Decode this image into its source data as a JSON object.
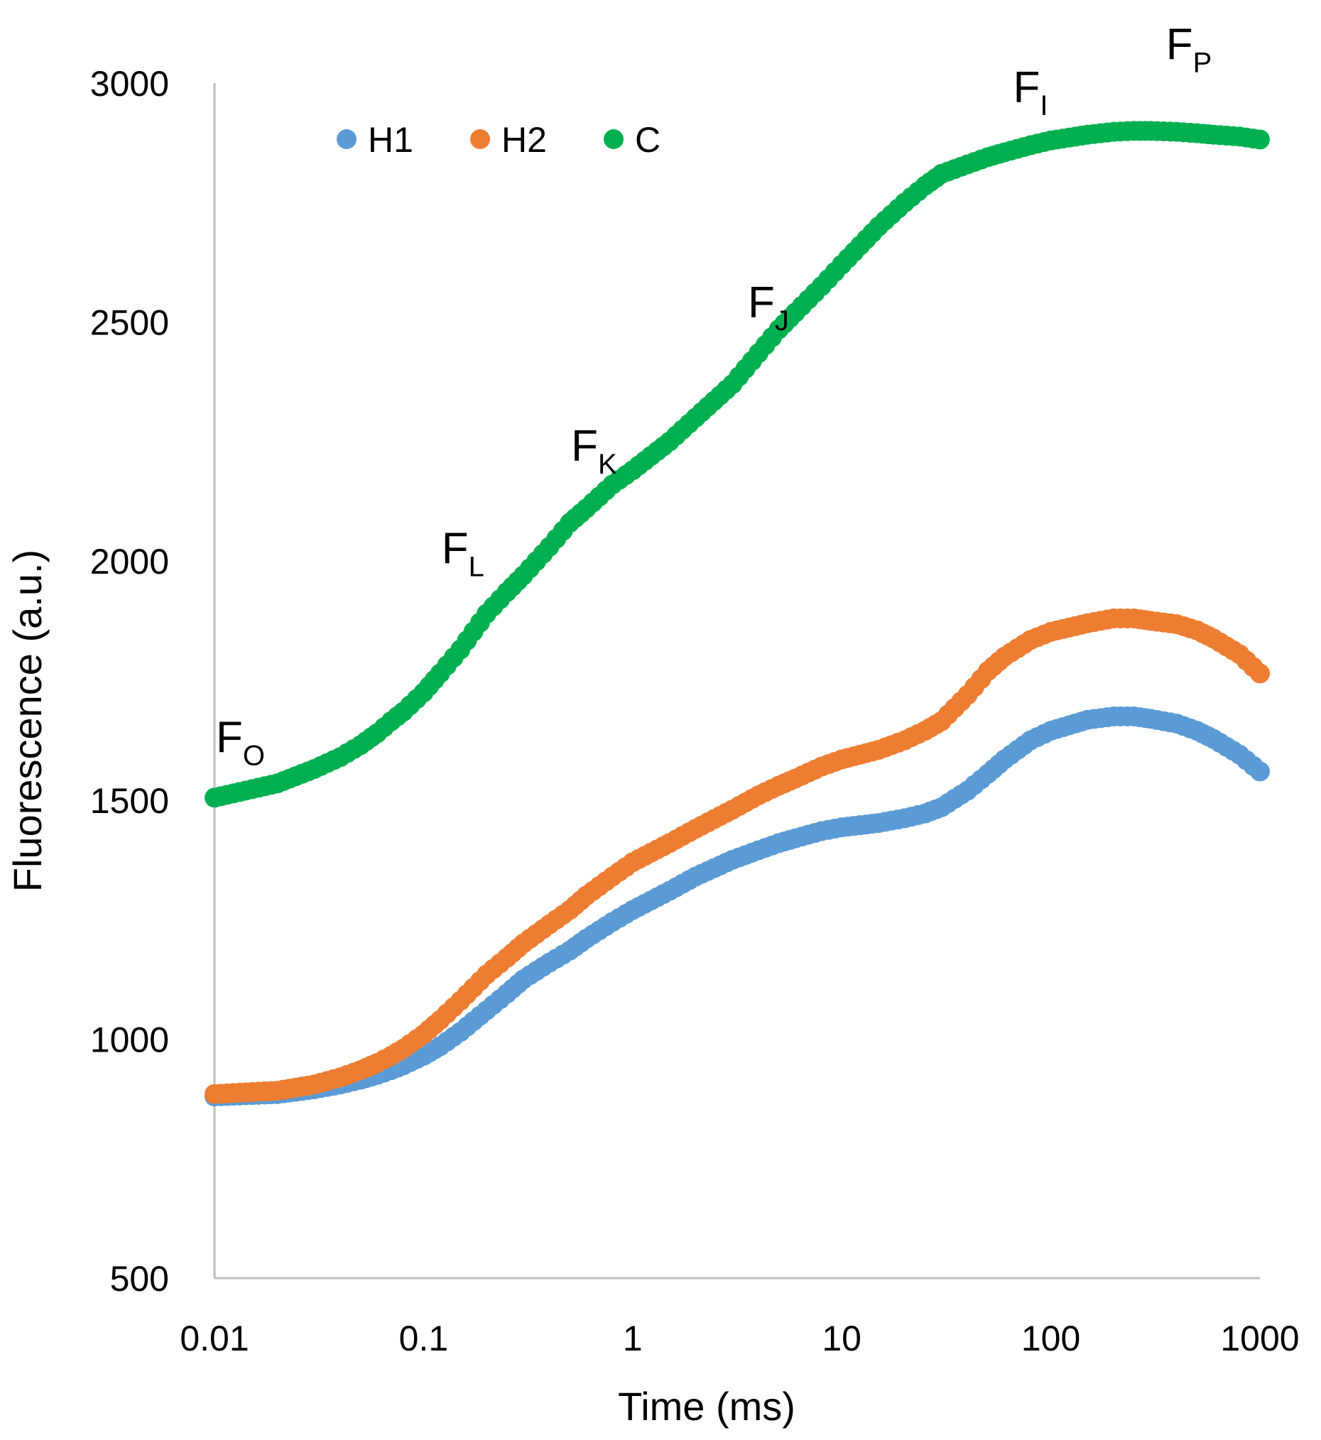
{
  "chart_data": {
    "type": "scatter",
    "title": "",
    "xlabel": "Time (ms)",
    "ylabel": "Fluorescence (a.u.)",
    "xscale": "log",
    "xlim": [
      0.01,
      1000
    ],
    "ylim": [
      500,
      3000
    ],
    "xticks": [
      0.01,
      0.1,
      1,
      10,
      100,
      1000
    ],
    "xtick_labels": [
      "0.01",
      "0.1",
      "1",
      "10",
      "100",
      "1000"
    ],
    "yticks": [
      500,
      1000,
      1500,
      2000,
      2500,
      3000
    ],
    "ytick_labels": [
      "500",
      "1000",
      "1500",
      "2000",
      "2500",
      "3000"
    ],
    "grid": false,
    "legend": {
      "position": "top-left",
      "orientation": "horizontal"
    },
    "series": [
      {
        "name": "H1",
        "color": "#5B9BD5",
        "points": [
          [
            0.01,
            880
          ],
          [
            0.02,
            885
          ],
          [
            0.03,
            895
          ],
          [
            0.04,
            905
          ],
          [
            0.05,
            915
          ],
          [
            0.06,
            925
          ],
          [
            0.07,
            935
          ],
          [
            0.08,
            945
          ],
          [
            0.1,
            965
          ],
          [
            0.12,
            985
          ],
          [
            0.15,
            1015
          ],
          [
            0.2,
            1060
          ],
          [
            0.25,
            1095
          ],
          [
            0.3,
            1125
          ],
          [
            0.4,
            1160
          ],
          [
            0.5,
            1185
          ],
          [
            0.6,
            1210
          ],
          [
            0.8,
            1245
          ],
          [
            1,
            1270
          ],
          [
            1.5,
            1310
          ],
          [
            2,
            1340
          ],
          [
            3,
            1375
          ],
          [
            4,
            1395
          ],
          [
            5,
            1410
          ],
          [
            6,
            1420
          ],
          [
            8,
            1435
          ],
          [
            10,
            1443
          ],
          [
            15,
            1452
          ],
          [
            20,
            1462
          ],
          [
            25,
            1472
          ],
          [
            30,
            1485
          ],
          [
            40,
            1520
          ],
          [
            50,
            1555
          ],
          [
            60,
            1585
          ],
          [
            80,
            1625
          ],
          [
            100,
            1645
          ],
          [
            150,
            1668
          ],
          [
            200,
            1675
          ],
          [
            250,
            1675
          ],
          [
            300,
            1670
          ],
          [
            400,
            1660
          ],
          [
            500,
            1645
          ],
          [
            600,
            1628
          ],
          [
            800,
            1595
          ],
          [
            1000,
            1560
          ]
        ]
      },
      {
        "name": "H2",
        "color": "#ED7D31",
        "points": [
          [
            0.01,
            885
          ],
          [
            0.02,
            892
          ],
          [
            0.03,
            905
          ],
          [
            0.04,
            920
          ],
          [
            0.05,
            935
          ],
          [
            0.06,
            950
          ],
          [
            0.07,
            965
          ],
          [
            0.08,
            980
          ],
          [
            0.1,
            1010
          ],
          [
            0.12,
            1040
          ],
          [
            0.15,
            1080
          ],
          [
            0.2,
            1135
          ],
          [
            0.25,
            1170
          ],
          [
            0.3,
            1200
          ],
          [
            0.4,
            1240
          ],
          [
            0.5,
            1270
          ],
          [
            0.6,
            1300
          ],
          [
            0.8,
            1340
          ],
          [
            1,
            1370
          ],
          [
            1.5,
            1410
          ],
          [
            2,
            1440
          ],
          [
            3,
            1480
          ],
          [
            4,
            1510
          ],
          [
            5,
            1530
          ],
          [
            6,
            1545
          ],
          [
            8,
            1570
          ],
          [
            10,
            1585
          ],
          [
            15,
            1605
          ],
          [
            20,
            1625
          ],
          [
            25,
            1645
          ],
          [
            30,
            1665
          ],
          [
            40,
            1720
          ],
          [
            50,
            1770
          ],
          [
            60,
            1800
          ],
          [
            80,
            1835
          ],
          [
            100,
            1852
          ],
          [
            150,
            1870
          ],
          [
            200,
            1880
          ],
          [
            250,
            1880
          ],
          [
            300,
            1875
          ],
          [
            400,
            1868
          ],
          [
            500,
            1855
          ],
          [
            600,
            1838
          ],
          [
            800,
            1805
          ],
          [
            1000,
            1765
          ]
        ]
      },
      {
        "name": "C",
        "color": "#00B050",
        "points": [
          [
            0.01,
            1505
          ],
          [
            0.02,
            1535
          ],
          [
            0.03,
            1565
          ],
          [
            0.04,
            1590
          ],
          [
            0.05,
            1615
          ],
          [
            0.06,
            1640
          ],
          [
            0.07,
            1665
          ],
          [
            0.08,
            1685
          ],
          [
            0.1,
            1725
          ],
          [
            0.12,
            1765
          ],
          [
            0.15,
            1815
          ],
          [
            0.2,
            1890
          ],
          [
            0.25,
            1935
          ],
          [
            0.3,
            1970
          ],
          [
            0.4,
            2030
          ],
          [
            0.5,
            2080
          ],
          [
            0.6,
            2110
          ],
          [
            0.8,
            2160
          ],
          [
            1,
            2190
          ],
          [
            1.5,
            2250
          ],
          [
            2,
            2300
          ],
          [
            3,
            2370
          ],
          [
            4,
            2435
          ],
          [
            5,
            2485
          ],
          [
            6,
            2520
          ],
          [
            8,
            2575
          ],
          [
            10,
            2620
          ],
          [
            15,
            2700
          ],
          [
            20,
            2750
          ],
          [
            25,
            2785
          ],
          [
            30,
            2810
          ],
          [
            40,
            2830
          ],
          [
            50,
            2845
          ],
          [
            60,
            2855
          ],
          [
            80,
            2870
          ],
          [
            100,
            2880
          ],
          [
            150,
            2892
          ],
          [
            200,
            2898
          ],
          [
            250,
            2900
          ],
          [
            300,
            2900
          ],
          [
            400,
            2898
          ],
          [
            500,
            2895
          ],
          [
            600,
            2892
          ],
          [
            800,
            2888
          ],
          [
            1000,
            2882
          ]
        ]
      }
    ],
    "annotations": [
      {
        "name": "FO",
        "main": "F",
        "sub": "O",
        "x": 0.01,
        "y": 1600
      },
      {
        "name": "FL",
        "main": "F",
        "sub": "L",
        "x": 0.12,
        "y": 1995
      },
      {
        "name": "FK",
        "main": "F",
        "sub": "K",
        "x": 0.5,
        "y": 2210
      },
      {
        "name": "FJ",
        "main": "F",
        "sub": "J",
        "x": 3.5,
        "y": 2510
      },
      {
        "name": "FI",
        "main": "F",
        "sub": "I",
        "x": 65,
        "y": 2960
      },
      {
        "name": "FP",
        "main": "F",
        "sub": "P",
        "x": 350,
        "y": 3050
      }
    ]
  }
}
